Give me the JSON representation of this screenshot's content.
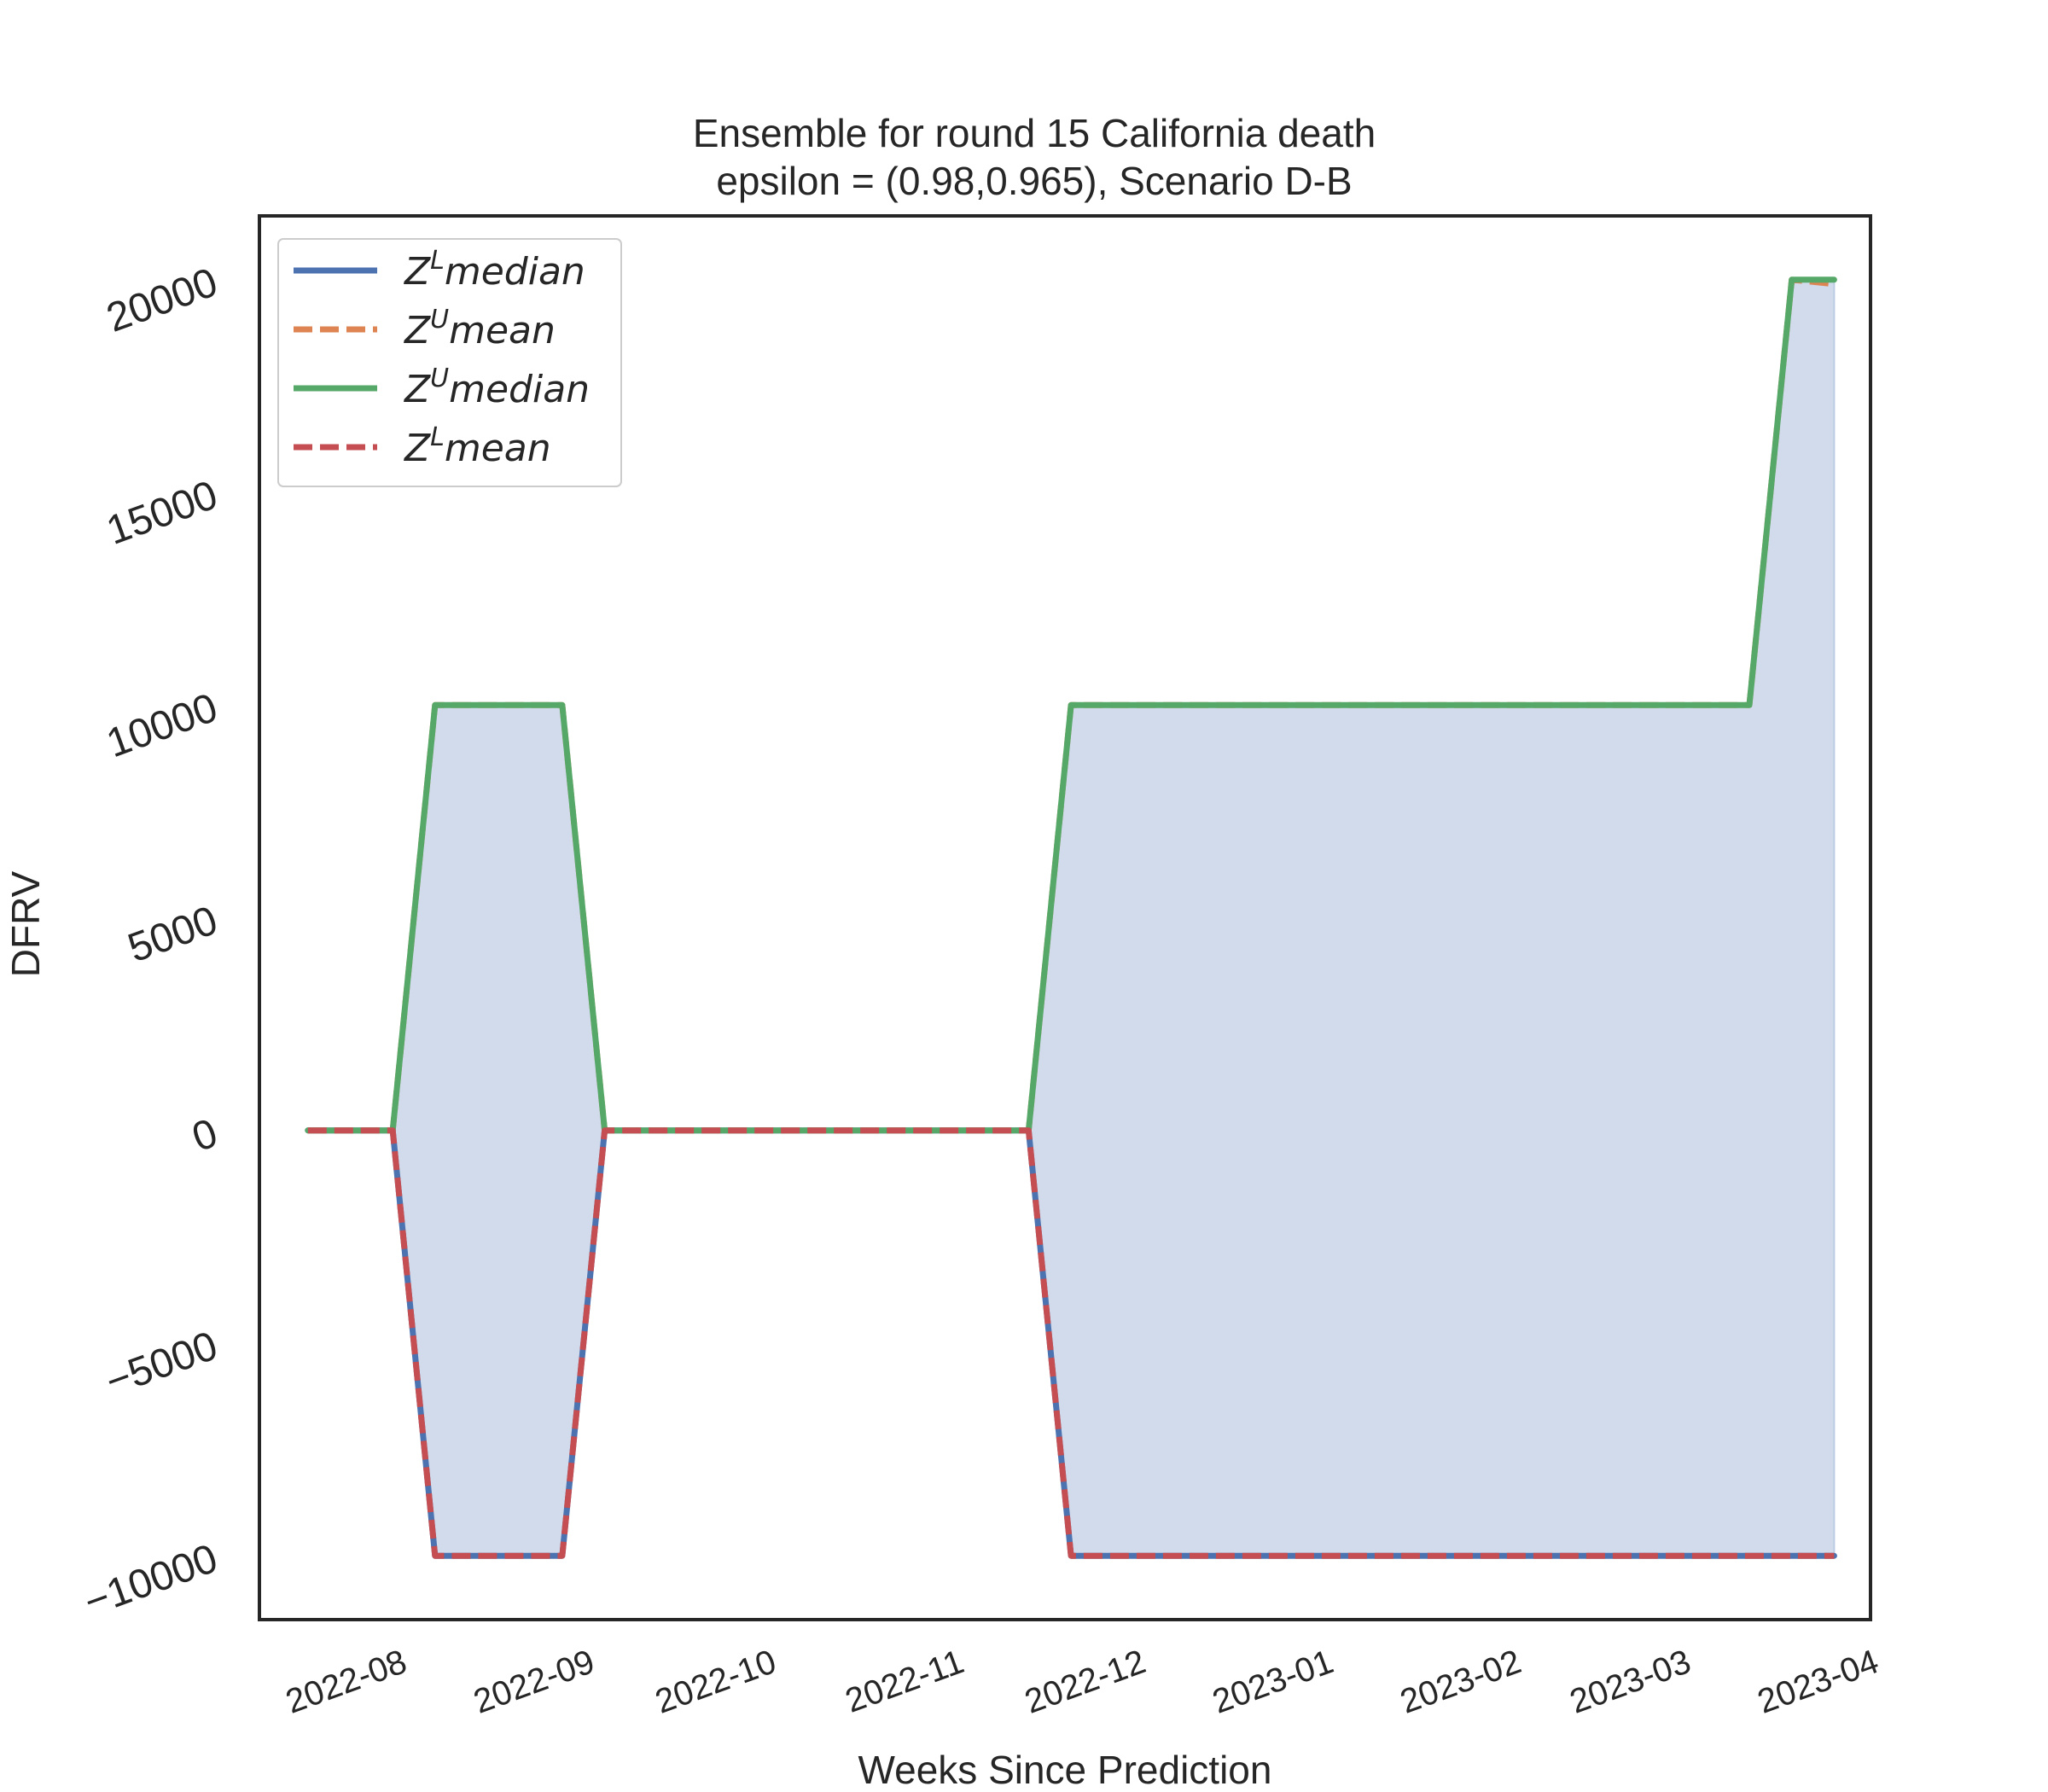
{
  "chart_data": {
    "type": "line",
    "title": "Ensemble for round 15 California  death",
    "subtitle": "epsilon = (0.98,0.965), Scenario D-B",
    "xlabel": "Weeks Since Prediction",
    "ylabel": "DFRV",
    "xlim": [
      "2022-07-09",
      "2023-04-01"
    ],
    "ylim": [
      -11500,
      21500
    ],
    "x_ticks": [
      "2022-08",
      "2022-09",
      "2022-10",
      "2022-11",
      "2022-12",
      "2023-01",
      "2023-02",
      "2023-03",
      "2023-04"
    ],
    "y_ticks": [
      -10000,
      -5000,
      0,
      5000,
      10000,
      15000,
      20000
    ],
    "y_tick_labels": [
      "−10000",
      "−5000",
      "0",
      "5000",
      "10000",
      "15000",
      "20000"
    ],
    "grid": false,
    "legend_position": "upper-left",
    "x": [
      "2022-07-17",
      "2022-07-24",
      "2022-07-31",
      "2022-08-07",
      "2022-08-14",
      "2022-08-21",
      "2022-08-28",
      "2022-09-04",
      "2022-09-11",
      "2022-09-18",
      "2022-09-25",
      "2022-10-02",
      "2022-10-09",
      "2022-10-16",
      "2022-10-23",
      "2022-10-30",
      "2022-11-06",
      "2022-11-13",
      "2022-11-20",
      "2022-11-27",
      "2022-12-04",
      "2022-12-11",
      "2022-12-18",
      "2022-12-25",
      "2023-01-01",
      "2023-01-08",
      "2023-01-15",
      "2023-01-22",
      "2023-01-29",
      "2023-02-05",
      "2023-02-12",
      "2023-02-19",
      "2023-02-26",
      "2023-03-05",
      "2023-03-12",
      "2023-03-19",
      "2023-03-26"
    ],
    "series": [
      {
        "name": "Z^L median",
        "legend_main": "Z",
        "legend_sup": "L",
        "legend_rest": "median",
        "color": "#4c72b0",
        "dash": "solid",
        "values": [
          0,
          0,
          0,
          -10000,
          -10000,
          -10000,
          -10000,
          0,
          0,
          0,
          0,
          0,
          0,
          0,
          0,
          0,
          0,
          0,
          -10000,
          -10000,
          -10000,
          -10000,
          -10000,
          -10000,
          -10000,
          -10000,
          -10000,
          -10000,
          -10000,
          -10000,
          -10000,
          -10000,
          -10000,
          -10000,
          -10000,
          -10000,
          -10000
        ]
      },
      {
        "name": "Z^U mean",
        "legend_main": "Z",
        "legend_sup": "U",
        "legend_rest": "mean",
        "color": "#dd8452",
        "dash": "dashed",
        "values": [
          0,
          0,
          0,
          10000,
          10000,
          10000,
          10000,
          0,
          0,
          0,
          0,
          0,
          0,
          0,
          0,
          0,
          0,
          0,
          10000,
          10000,
          10000,
          10000,
          10000,
          10000,
          10000,
          10000,
          10000,
          10000,
          10000,
          10000,
          10000,
          10000,
          10000,
          10000,
          10000,
          20000,
          19900
        ]
      },
      {
        "name": "Z^U median",
        "legend_main": "Z",
        "legend_sup": "U",
        "legend_rest": "median",
        "color": "#55a868",
        "dash": "solid",
        "values": [
          0,
          0,
          0,
          10000,
          10000,
          10000,
          10000,
          0,
          0,
          0,
          0,
          0,
          0,
          0,
          0,
          0,
          0,
          0,
          10000,
          10000,
          10000,
          10000,
          10000,
          10000,
          10000,
          10000,
          10000,
          10000,
          10000,
          10000,
          10000,
          10000,
          10000,
          10000,
          10000,
          20000,
          20000
        ]
      },
      {
        "name": "Z^L mean",
        "legend_main": "Z",
        "legend_sup": "L",
        "legend_rest": "mean",
        "color": "#c44e52",
        "dash": "dashed",
        "values": [
          0,
          0,
          0,
          -10000,
          -10000,
          -10000,
          -10000,
          0,
          0,
          0,
          0,
          0,
          0,
          0,
          0,
          0,
          0,
          0,
          -10000,
          -10000,
          -10000,
          -10000,
          -10000,
          -10000,
          -10000,
          -10000,
          -10000,
          -10000,
          -10000,
          -10000,
          -10000,
          -10000,
          -10000,
          -10000,
          -10000,
          -10000,
          -10000
        ]
      }
    ],
    "fill_between": {
      "lower": "Z^L median",
      "upper": "Z^U median",
      "color": "#d2dbeb"
    }
  }
}
